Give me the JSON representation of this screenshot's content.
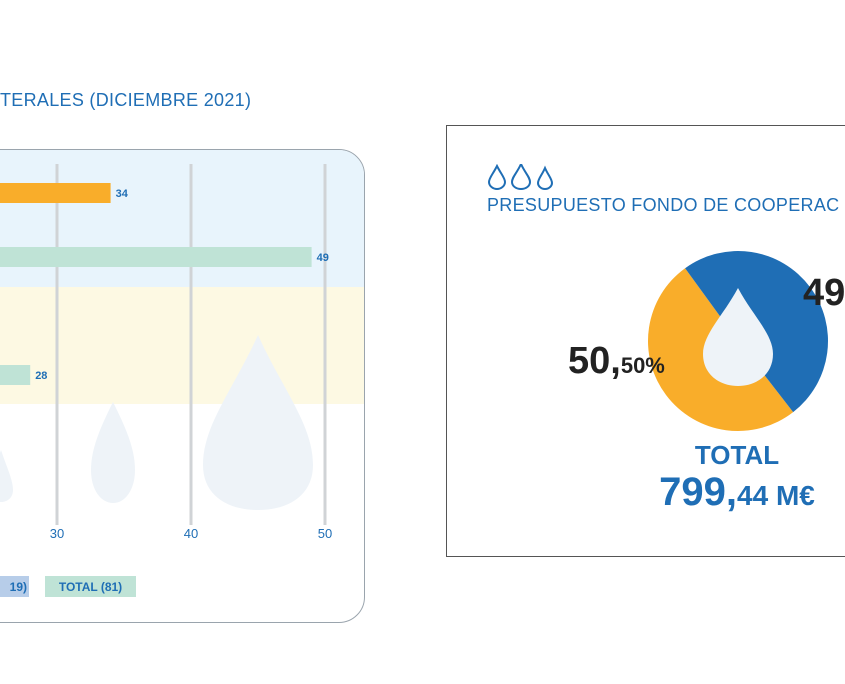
{
  "left_title": "TERALES (DICIEMBRE 2021)",
  "right_title": "PRESUPUESTO FONDO DE COOPERAC",
  "legend": [
    {
      "label": "19)",
      "color": "#b7cde9"
    },
    {
      "label": "TOTAL (81)",
      "color": "#bfe3d6"
    }
  ],
  "colors": {
    "blue": "#1f6eb5",
    "orange": "#f9ad2a",
    "green": "#bfe3d6",
    "band_blue": "#e8f4fc",
    "band_yellow": "#fdf9e3",
    "drop": "#eef3f8"
  },
  "pie": {
    "left_pct_main": "50,",
    "left_pct_small": "50%",
    "right_pct": "49",
    "total_label": "TOTAL",
    "total_main": "799,",
    "total_small": "44 M€"
  },
  "chart_data": [
    {
      "type": "bar",
      "orientation": "horizontal",
      "title": "TERALES (DICIEMBRE 2021)",
      "x_ticks": [
        30,
        40,
        50
      ],
      "xlim": [
        17,
        50
      ],
      "bars": [
        {
          "value": 34,
          "label": "34",
          "series": "orange"
        },
        {
          "value": 49,
          "label": "49",
          "series": "TOTAL (81)"
        },
        {
          "value": 28,
          "label": "28",
          "series": "TOTAL (81)"
        }
      ],
      "legend": [
        "19)",
        "TOTAL (81)"
      ]
    },
    {
      "type": "pie",
      "title": "PRESUPUESTO FONDO DE COOPERAC",
      "slices": [
        {
          "label": "50,50%",
          "value": 50.5,
          "color": "#f9ad2a"
        },
        {
          "label": "49",
          "value": 49.5,
          "color": "#1f6eb5"
        }
      ],
      "total": "799,44 M€"
    }
  ]
}
